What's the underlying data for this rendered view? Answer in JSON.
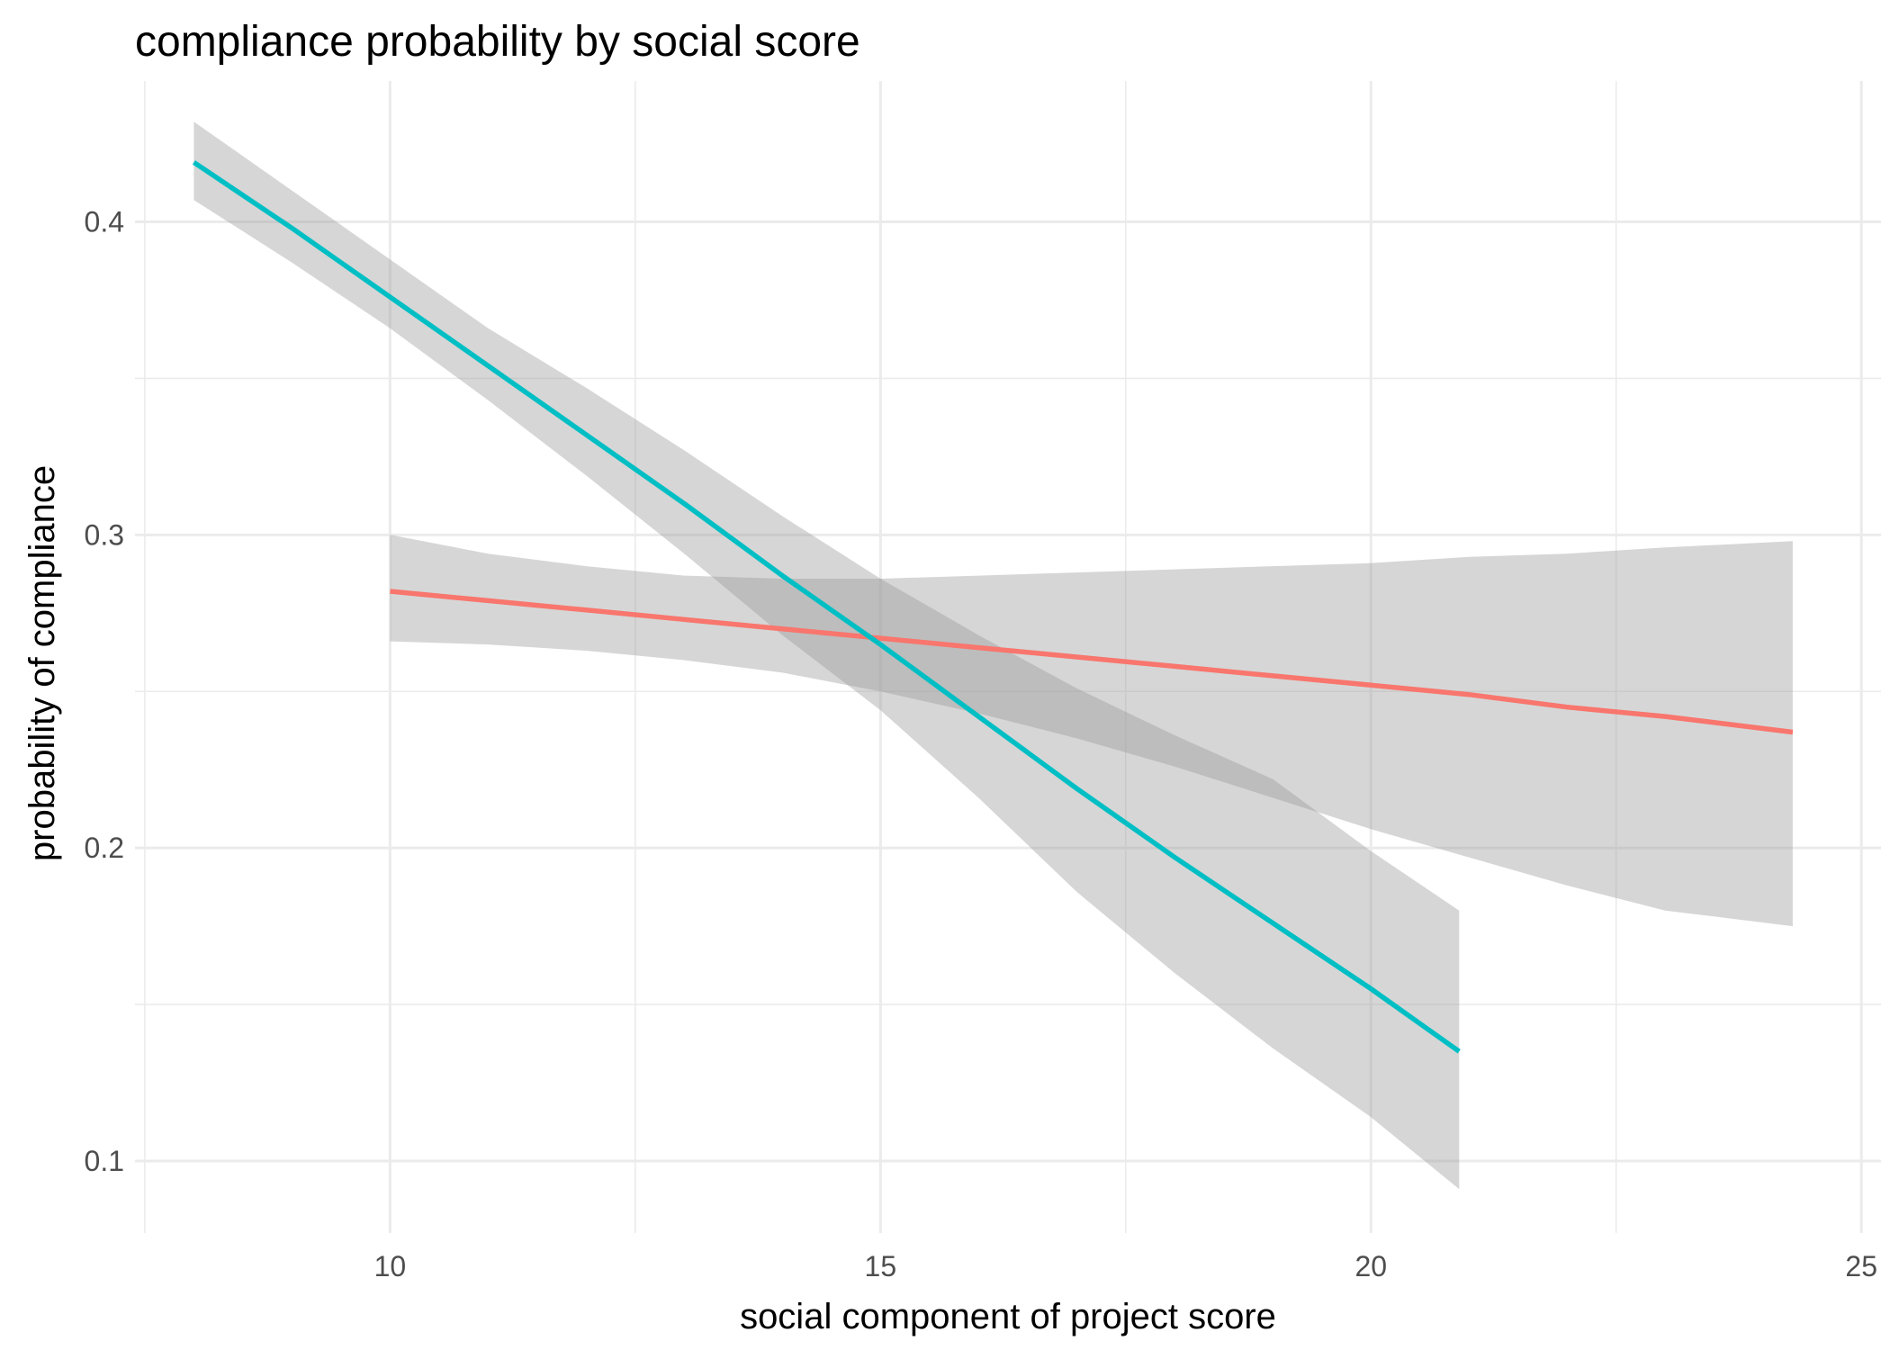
{
  "chart_data": {
    "type": "line",
    "title": "compliance probability by social score",
    "xlabel": "social component of project score",
    "ylabel": "probability of compliance",
    "xlim": [
      7.4,
      25.2
    ],
    "ylim": [
      0.077,
      0.445
    ],
    "x_ticks": [
      10,
      15,
      20,
      25
    ],
    "x_tick_labels": [
      "10",
      "15",
      "20",
      "25"
    ],
    "x_minor_ticks": [
      7.5,
      12.5,
      17.5,
      22.5
    ],
    "y_ticks": [
      0.1,
      0.2,
      0.3,
      0.4
    ],
    "y_tick_labels": [
      "0.1",
      "0.2",
      "0.3",
      "0.4"
    ],
    "y_minor_ticks": [
      0.15,
      0.25,
      0.35
    ],
    "grid": true,
    "legend": "none",
    "series": [
      {
        "color": "#F8766D",
        "x": [
          10.0,
          11.0,
          12.0,
          13.0,
          14.0,
          15.0,
          16.0,
          17.0,
          18.0,
          19.0,
          20.0,
          21.0,
          22.0,
          23.0,
          24.3
        ],
        "y": [
          0.282,
          0.279,
          0.276,
          0.273,
          0.27,
          0.267,
          0.264,
          0.261,
          0.258,
          0.255,
          0.252,
          0.249,
          0.245,
          0.242,
          0.237
        ],
        "lower": [
          0.266,
          0.265,
          0.263,
          0.26,
          0.256,
          0.25,
          0.243,
          0.235,
          0.226,
          0.216,
          0.206,
          0.197,
          0.188,
          0.18,
          0.175
        ],
        "upper": [
          0.3,
          0.294,
          0.29,
          0.287,
          0.286,
          0.286,
          0.287,
          0.288,
          0.289,
          0.29,
          0.291,
          0.293,
          0.294,
          0.296,
          0.298
        ]
      },
      {
        "color": "#00BFC4",
        "x": [
          8.0,
          9.0,
          10.0,
          11.0,
          12.0,
          13.0,
          14.0,
          15.0,
          16.0,
          17.0,
          18.0,
          19.0,
          20.0,
          20.9
        ],
        "y": [
          0.419,
          0.398,
          0.376,
          0.354,
          0.332,
          0.31,
          0.287,
          0.265,
          0.242,
          0.219,
          0.197,
          0.176,
          0.155,
          0.135
        ],
        "lower": [
          0.407,
          0.387,
          0.366,
          0.343,
          0.319,
          0.294,
          0.268,
          0.244,
          0.216,
          0.186,
          0.16,
          0.136,
          0.114,
          0.091
        ],
        "upper": [
          0.432,
          0.41,
          0.388,
          0.366,
          0.347,
          0.327,
          0.306,
          0.286,
          0.268,
          0.251,
          0.236,
          0.222,
          0.199,
          0.18
        ]
      }
    ]
  }
}
